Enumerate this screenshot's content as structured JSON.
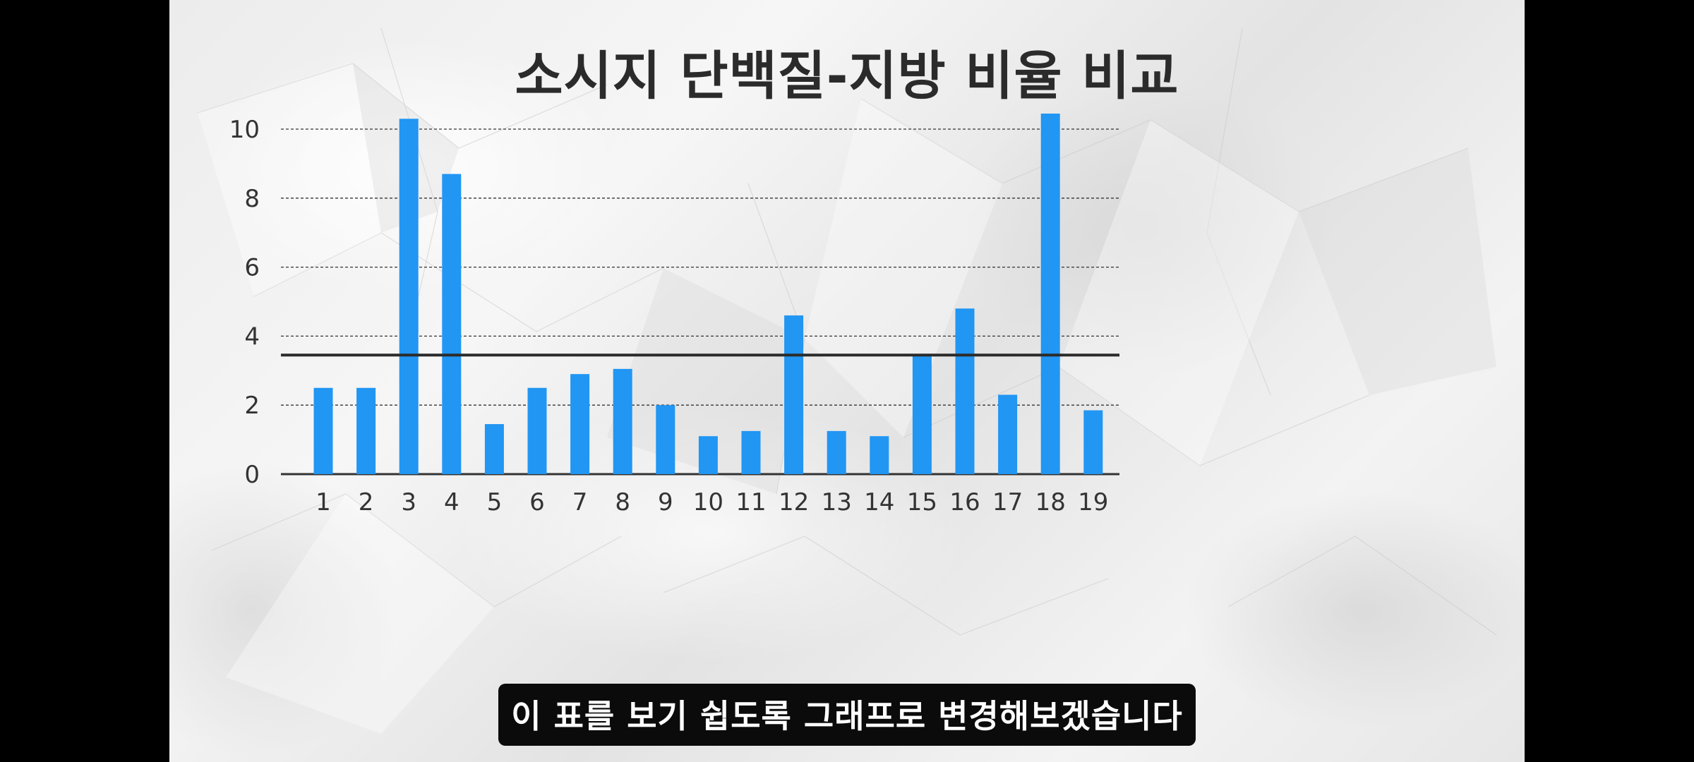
{
  "caption": "이 표를 보기 쉽도록 그래프로 변경해보겠습니다",
  "colors": {
    "bar": "#2196F3",
    "average_line": "#2b2b2b",
    "grid": "#333333"
  },
  "chart_data": {
    "type": "bar",
    "title": "소시지 단백질-지방 비율 비교",
    "xlabel": "",
    "ylabel": "",
    "categories": [
      "1",
      "2",
      "3",
      "4",
      "5",
      "6",
      "7",
      "8",
      "9",
      "10",
      "11",
      "12",
      "13",
      "14",
      "15",
      "16",
      "17",
      "18",
      "19"
    ],
    "values": [
      2.5,
      2.5,
      10.3,
      8.7,
      1.45,
      2.5,
      2.9,
      3.05,
      2.0,
      1.1,
      1.25,
      4.6,
      1.25,
      1.1,
      3.45,
      4.8,
      2.3,
      10.45,
      1.85
    ],
    "reference_line": 3.45,
    "ylim": [
      0,
      10
    ],
    "yticks": [
      0,
      2,
      4,
      6,
      8,
      10
    ],
    "grid": "horizontal dashed",
    "legend": "none"
  }
}
